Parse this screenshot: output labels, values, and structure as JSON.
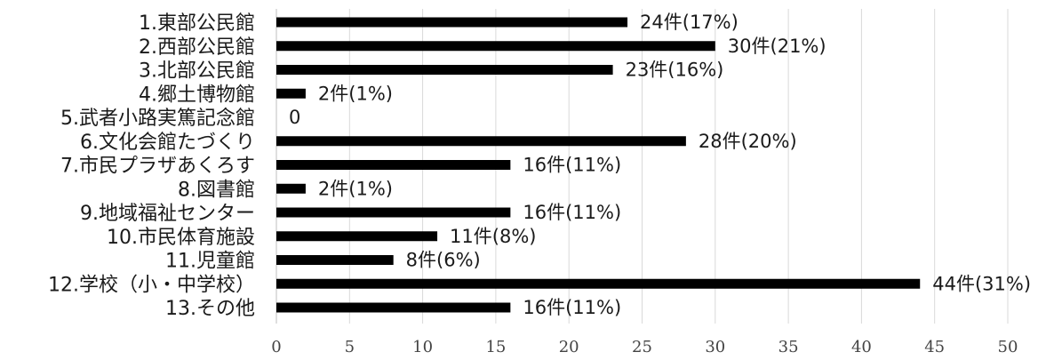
{
  "chart_data": {
    "type": "bar",
    "orientation": "horizontal",
    "title": "",
    "xlabel": "",
    "ylabel": "",
    "xlim": [
      0,
      50
    ],
    "x_ticks": [
      0,
      5,
      10,
      15,
      20,
      25,
      30,
      35,
      40,
      45,
      50
    ],
    "grid": "vertical",
    "bar_color": "#000000",
    "categories": [
      "1.東部公民館",
      "2.西部公民館",
      "3.北部公民館",
      "4.郷土博物館",
      "5.武者小路実篤記念館",
      "6.文化会館たづくり",
      "7.市民プラザあくろす",
      "8.図書館",
      "9.地域福祉センター",
      "10.市民体育施設",
      "11.児童館",
      "12.学校（小・中学校）",
      "13.その他"
    ],
    "values": [
      24,
      30,
      23,
      2,
      0,
      28,
      16,
      2,
      16,
      11,
      8,
      44,
      16
    ],
    "data_labels": [
      "24件(17%)",
      "30件(21%)",
      "23件(16%)",
      "2件(1%)",
      "0",
      "28件(20%)",
      "16件(11%)",
      "2件(1%)",
      "16件(11%)",
      "11件(8%)",
      "8件(6%)",
      "44件(31%)",
      "16件(11%)"
    ]
  }
}
